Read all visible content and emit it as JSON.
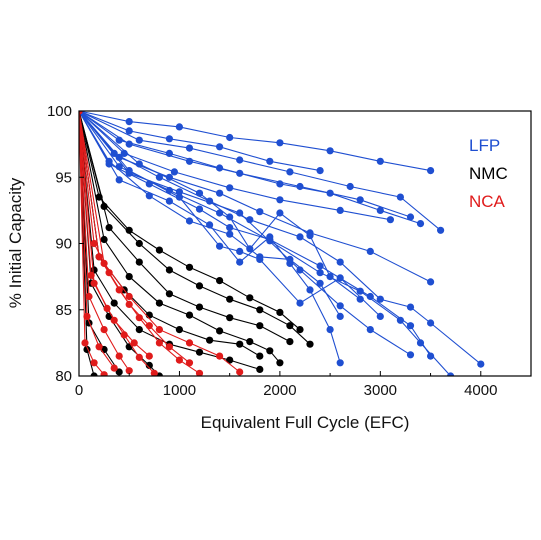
{
  "chart_data": {
    "type": "scatter",
    "title": "",
    "xlabel": "Equivalent Full Cycle (EFC)",
    "ylabel": "% Initial Capacity",
    "xlim": [
      0,
      4500
    ],
    "ylim": [
      80,
      100
    ],
    "xticks": [
      0,
      1000,
      2000,
      3000,
      4000
    ],
    "yticks": [
      80,
      85,
      90,
      95,
      100
    ],
    "grid": false,
    "legend_placement": "top-right",
    "series": [
      {
        "name": "LFP",
        "color": "#1f4fd1",
        "cells": [
          [
            [
              0,
              100
            ],
            [
              500,
              99.2
            ],
            [
              1000,
              98.8
            ],
            [
              1500,
              98
            ],
            [
              2000,
              97.6
            ],
            [
              2500,
              97
            ],
            [
              3000,
              96.2
            ],
            [
              3500,
              95.5
            ]
          ],
          [
            [
              0,
              100
            ],
            [
              500,
              98.5
            ],
            [
              900,
              97.9
            ],
            [
              1400,
              97.3
            ],
            [
              1900,
              96.2
            ],
            [
              2400,
              95.5
            ]
          ],
          [
            [
              0,
              100
            ],
            [
              600,
              97.8
            ],
            [
              1100,
              97.2
            ],
            [
              1600,
              96.3
            ],
            [
              2100,
              95.4
            ],
            [
              2700,
              94.3
            ],
            [
              3200,
              93.5
            ],
            [
              3600,
              91
            ]
          ],
          [
            [
              0,
              100
            ],
            [
              400,
              97.8
            ],
            [
              900,
              96.8
            ],
            [
              1400,
              95.7
            ],
            [
              2000,
              94.5
            ],
            [
              2500,
              93.8
            ],
            [
              3000,
              92.5
            ],
            [
              3400,
              91.5
            ]
          ],
          [
            [
              0,
              100
            ],
            [
              500,
              97.5
            ],
            [
              1100,
              96.2
            ],
            [
              1600,
              95.3
            ],
            [
              2200,
              94.3
            ],
            [
              2800,
              93.3
            ],
            [
              3300,
              92
            ]
          ],
          [
            [
              0,
              100
            ],
            [
              450,
              96.8
            ],
            [
              950,
              95.4
            ],
            [
              1500,
              94.2
            ],
            [
              2000,
              93.3
            ],
            [
              2600,
              92.5
            ],
            [
              3100,
              91.8
            ]
          ],
          [
            [
              0,
              100
            ],
            [
              400,
              96.5
            ],
            [
              900,
              95
            ],
            [
              1400,
              93.8
            ],
            [
              1800,
              92.4
            ],
            [
              2300,
              90.8
            ],
            [
              2900,
              89.4
            ],
            [
              3500,
              87.1
            ]
          ],
          [
            [
              0,
              100
            ],
            [
              300,
              96
            ],
            [
              700,
              94.5
            ],
            [
              1200,
              92.6
            ],
            [
              1500,
              91.2
            ],
            [
              1900,
              90.3
            ],
            [
              2400,
              88.3
            ],
            [
              2900,
              86
            ],
            [
              3300,
              83.8
            ],
            [
              3500,
              81.5
            ]
          ],
          [
            [
              0,
              100
            ],
            [
              400,
              95.8
            ],
            [
              900,
              94
            ],
            [
              1400,
              92.3
            ],
            [
              1900,
              90.2
            ],
            [
              2400,
              87.8
            ],
            [
              2800,
              86.4
            ],
            [
              3200,
              84.2
            ],
            [
              3400,
              82.5
            ],
            [
              3700,
              80
            ]
          ],
          [
            [
              0,
              100
            ],
            [
              350,
              96.8
            ],
            [
              800,
              95
            ],
            [
              1300,
              93.2
            ],
            [
              1700,
              91.8
            ],
            [
              2200,
              90.5
            ],
            [
              2600,
              88.6
            ],
            [
              3000,
              85.8
            ],
            [
              3300,
              85.2
            ],
            [
              3500,
              84
            ],
            [
              4000,
              80.9
            ]
          ],
          [
            [
              0,
              100
            ],
            [
              500,
              95.3
            ],
            [
              1000,
              93.9
            ],
            [
              1600,
              92.3
            ],
            [
              2200,
              88
            ],
            [
              2600,
              85.3
            ],
            [
              2900,
              83.5
            ],
            [
              3300,
              81.6
            ]
          ],
          [
            [
              0,
              100
            ],
            [
              400,
              94.8
            ],
            [
              900,
              93.2
            ],
            [
              1300,
              91.4
            ],
            [
              1600,
              88.6
            ],
            [
              1900,
              90.5
            ],
            [
              2100,
              88.5
            ],
            [
              2300,
              86.5
            ],
            [
              2500,
              83.5
            ],
            [
              2600,
              81
            ]
          ],
          [
            [
              0,
              100
            ],
            [
              300,
              96.2
            ],
            [
              700,
              93.6
            ],
            [
              1100,
              91.7
            ],
            [
              1500,
              90.7
            ],
            [
              1800,
              89
            ],
            [
              2100,
              88.8
            ],
            [
              2400,
              87
            ],
            [
              2600,
              84.5
            ]
          ],
          [
            [
              0,
              100
            ],
            [
              600,
              96
            ],
            [
              1200,
              93.8
            ],
            [
              1500,
              92
            ],
            [
              1700,
              89.6
            ],
            [
              2000,
              92.3
            ],
            [
              2300,
              90.6
            ],
            [
              2500,
              87.5
            ],
            [
              2800,
              85.8
            ]
          ],
          [
            [
              0,
              100
            ],
            [
              500,
              95.5
            ],
            [
              1000,
              93.5
            ],
            [
              1400,
              89.8
            ],
            [
              1600,
              89.4
            ],
            [
              1800,
              88.8
            ],
            [
              2200,
              85.5
            ],
            [
              2600,
              87.4
            ],
            [
              3000,
              84.5
            ]
          ]
        ]
      },
      {
        "name": "NMC",
        "color": "#000000",
        "cells": [
          [
            [
              0,
              100
            ],
            [
              200,
              93.5
            ],
            [
              500,
              91
            ],
            [
              800,
              89.5
            ],
            [
              1100,
              88.2
            ],
            [
              1400,
              87.2
            ],
            [
              1700,
              85.9
            ],
            [
              2000,
              84.8
            ],
            [
              2200,
              83.5
            ]
          ],
          [
            [
              0,
              100
            ],
            [
              250,
              92.8
            ],
            [
              600,
              90
            ],
            [
              900,
              88
            ],
            [
              1200,
              86.8
            ],
            [
              1500,
              85.8
            ],
            [
              1800,
              85
            ],
            [
              2100,
              83.8
            ],
            [
              2300,
              82.4
            ]
          ],
          [
            [
              0,
              100
            ],
            [
              300,
              91.2
            ],
            [
              600,
              88.6
            ],
            [
              900,
              86.2
            ],
            [
              1200,
              85.2
            ],
            [
              1500,
              84.4
            ],
            [
              1800,
              83.8
            ],
            [
              2100,
              82.6
            ]
          ],
          [
            [
              0,
              100
            ],
            [
              250,
              90.3
            ],
            [
              500,
              87.5
            ],
            [
              800,
              85.5
            ],
            [
              1100,
              84.6
            ],
            [
              1400,
              83.4
            ],
            [
              1700,
              82.6
            ],
            [
              1900,
              81.9
            ],
            [
              2000,
              81
            ]
          ],
          [
            [
              0,
              100
            ],
            [
              200,
              89
            ],
            [
              450,
              86.5
            ],
            [
              700,
              84.6
            ],
            [
              1000,
              83.5
            ],
            [
              1300,
              82.7
            ],
            [
              1600,
              82.4
            ],
            [
              1800,
              81.5
            ]
          ],
          [
            [
              0,
              100
            ],
            [
              150,
              88
            ],
            [
              350,
              85.5
            ],
            [
              600,
              83.5
            ],
            [
              900,
              82.4
            ],
            [
              1200,
              81.8
            ],
            [
              1500,
              81.2
            ],
            [
              1800,
              80.5
            ]
          ],
          [
            [
              0,
              100
            ],
            [
              120,
              87
            ],
            [
              300,
              84.5
            ],
            [
              500,
              82.2
            ],
            [
              700,
              80.8
            ],
            [
              800,
              80
            ]
          ],
          [
            [
              0,
              100
            ],
            [
              100,
              84
            ],
            [
              250,
              82
            ],
            [
              400,
              80.3
            ]
          ],
          [
            [
              0,
              100
            ],
            [
              80,
              82
            ],
            [
              150,
              80
            ]
          ]
        ]
      },
      {
        "name": "NCA",
        "color": "#e01b1b",
        "cells": [
          [
            [
              0,
              100
            ],
            [
              150,
              90
            ],
            [
              300,
              87.8
            ],
            [
              500,
              85.4
            ],
            [
              700,
              83.8
            ],
            [
              900,
              82.2
            ],
            [
              1100,
              81
            ]
          ],
          [
            [
              0,
              100
            ],
            [
              200,
              89
            ],
            [
              400,
              86.5
            ],
            [
              600,
              84.4
            ],
            [
              800,
              82.5
            ],
            [
              1000,
              81.2
            ],
            [
              1200,
              80.2
            ]
          ],
          [
            [
              0,
              100
            ],
            [
              250,
              88.5
            ],
            [
              500,
              86
            ],
            [
              800,
              83.5
            ],
            [
              1100,
              82.5
            ],
            [
              1400,
              81.5
            ],
            [
              1600,
              80.3
            ]
          ],
          [
            [
              0,
              100
            ],
            [
              120,
              87.6
            ],
            [
              280,
              85.1
            ],
            [
              450,
              83.1
            ],
            [
              600,
              81.4
            ],
            [
              750,
              80.2
            ]
          ],
          [
            [
              0,
              100
            ],
            [
              100,
              86
            ],
            [
              250,
              83.5
            ],
            [
              400,
              81.5
            ],
            [
              500,
              80.4
            ]
          ],
          [
            [
              0,
              100
            ],
            [
              80,
              84.5
            ],
            [
              200,
              82.2
            ],
            [
              350,
              80.6
            ]
          ],
          [
            [
              0,
              100
            ],
            [
              60,
              82.5
            ],
            [
              150,
              81
            ],
            [
              250,
              80.1
            ]
          ],
          [
            [
              0,
              100
            ],
            [
              150,
              87
            ],
            [
              350,
              84.2
            ],
            [
              550,
              82.5
            ],
            [
              700,
              81.5
            ]
          ]
        ]
      }
    ]
  }
}
